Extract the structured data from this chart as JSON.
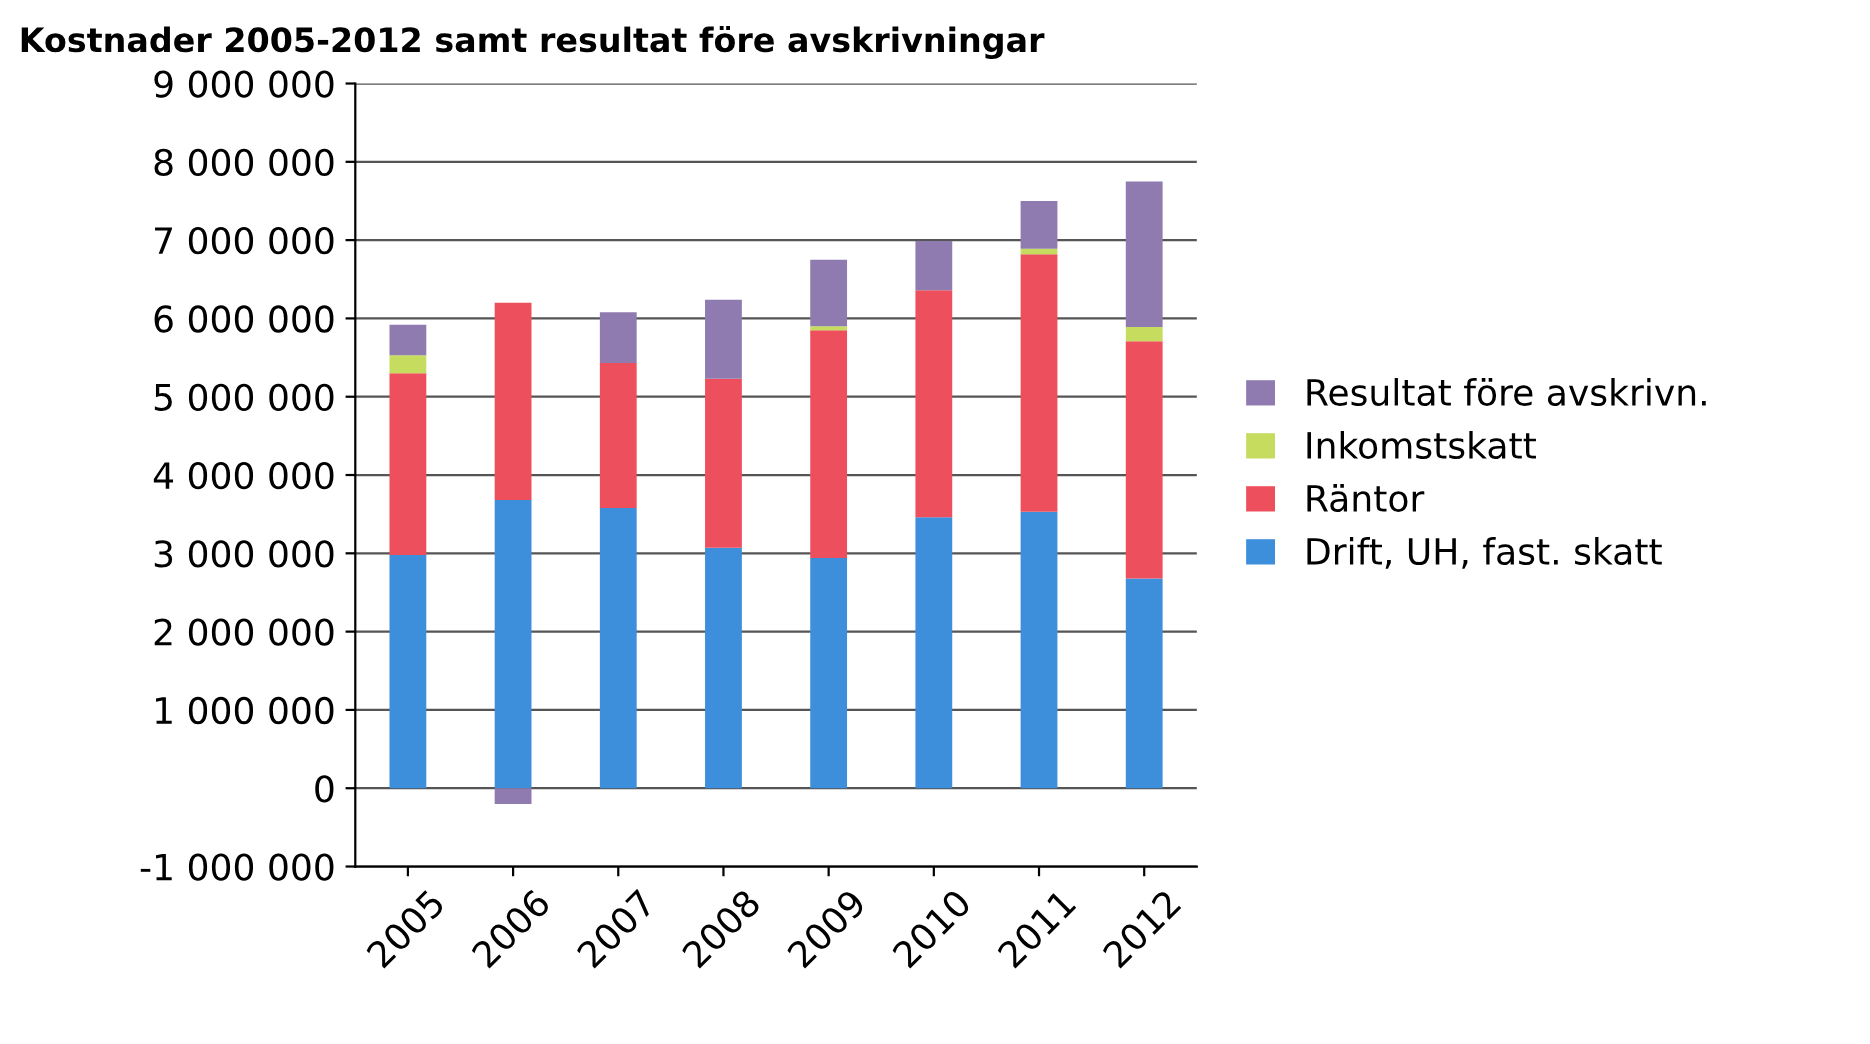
{
  "chart_data": {
    "type": "bar",
    "title": "Kostnader 2005-2012 samt resultat före avskrivningar",
    "stacked": true,
    "categories": [
      "2005",
      "2006",
      "2007",
      "2008",
      "2009",
      "2010",
      "2011",
      "2012"
    ],
    "series": [
      {
        "name": "Drift, UH, fast. skatt",
        "color": "#3d8fdc",
        "values": [
          2980000,
          3680000,
          3580000,
          3070000,
          2940000,
          3460000,
          3530000,
          2680000
        ]
      },
      {
        "name": "Räntor",
        "color": "#ee4f5c",
        "values": [
          2320000,
          2520000,
          1850000,
          2160000,
          2910000,
          2900000,
          3290000,
          3030000
        ]
      },
      {
        "name": "Inkomstskatt",
        "color": "#c5dc5e",
        "values": [
          230000,
          0,
          0,
          0,
          50000,
          0,
          70000,
          180000
        ]
      },
      {
        "name": "Resultat före avskrivn.",
        "color": "#8f7bb0",
        "values": [
          390000,
          -200000,
          650000,
          1010000,
          850000,
          630000,
          610000,
          1860000
        ]
      }
    ],
    "ylim": [
      -1000000,
      9000000
    ],
    "yticks": [
      {
        "value": -1000000,
        "label": "-1 000 000"
      },
      {
        "value": 0,
        "label": "0"
      },
      {
        "value": 1000000,
        "label": "1 000 000"
      },
      {
        "value": 2000000,
        "label": "2 000 000"
      },
      {
        "value": 3000000,
        "label": "3 000 000"
      },
      {
        "value": 4000000,
        "label": "4 000 000"
      },
      {
        "value": 5000000,
        "label": "5 000 000"
      },
      {
        "value": 6000000,
        "label": "6 000 000"
      },
      {
        "value": 7000000,
        "label": "7 000 000"
      },
      {
        "value": 8000000,
        "label": "8 000 000"
      },
      {
        "value": 9000000,
        "label": "9 000 000"
      }
    ],
    "grid": "y",
    "legend": "right"
  }
}
